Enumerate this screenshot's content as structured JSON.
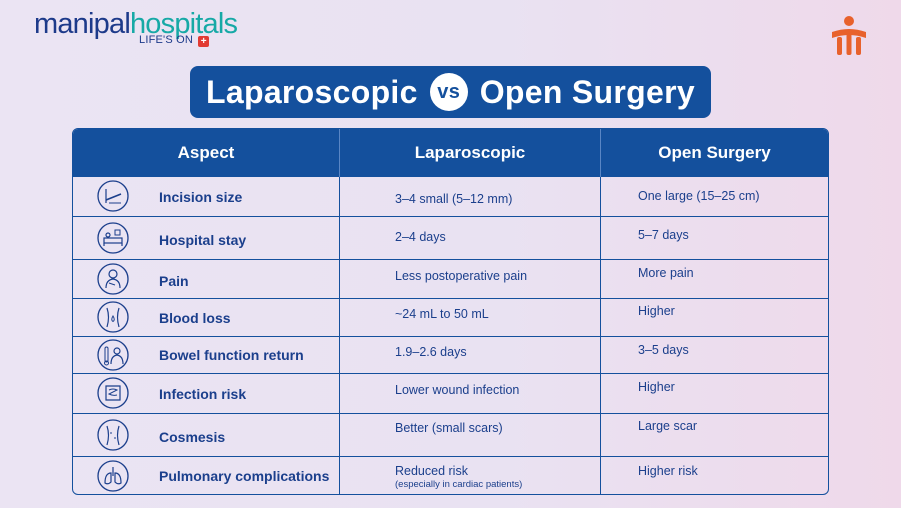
{
  "brand": {
    "name_part1": "manipal",
    "name_part2": "hospitals",
    "tagline": "LIFE'S ON",
    "tagline_plus": "+"
  },
  "title": {
    "left": "Laparoscopic",
    "vs": "vs",
    "right": "Open Surgery"
  },
  "headers": {
    "aspect": "Aspect",
    "laparoscopic": "Laparoscopic",
    "open": "Open Surgery"
  },
  "rows": [
    {
      "icon": "incision-icon",
      "aspect": "Incision size",
      "laparoscopic": "3–4 small (5–12 mm)",
      "open": "One large (15–25 cm)"
    },
    {
      "icon": "hospital-bed-icon",
      "aspect": "Hospital stay",
      "laparoscopic": "2–4 days",
      "open": "5–7 days"
    },
    {
      "icon": "pain-icon",
      "aspect": "Pain",
      "laparoscopic": "Less postoperative pain",
      "open": "More pain"
    },
    {
      "icon": "blood-loss-icon",
      "aspect": "Blood loss",
      "laparoscopic": "~24 mL to 50 mL",
      "open": "Higher"
    },
    {
      "icon": "bowel-icon",
      "aspect": "Bowel function return",
      "laparoscopic": "1.9–2.6 days",
      "open": "3–5 days"
    },
    {
      "icon": "intestine-icon",
      "aspect": "Infection risk",
      "laparoscopic": "Lower wound infection",
      "open": "Higher"
    },
    {
      "icon": "cosmesis-icon",
      "aspect": "Cosmesis",
      "laparoscopic": "Better (small scars)",
      "open": "Large scar"
    },
    {
      "icon": "lungs-icon",
      "aspect": "Pulmonary complications",
      "laparoscopic": "Reduced risk",
      "laparoscopic_note": "(especially in cardiac patients)",
      "open": "Higher risk"
    }
  ],
  "colors": {
    "primary": "#14509d",
    "teal": "#17a9a6",
    "accent": "#e8612c"
  }
}
